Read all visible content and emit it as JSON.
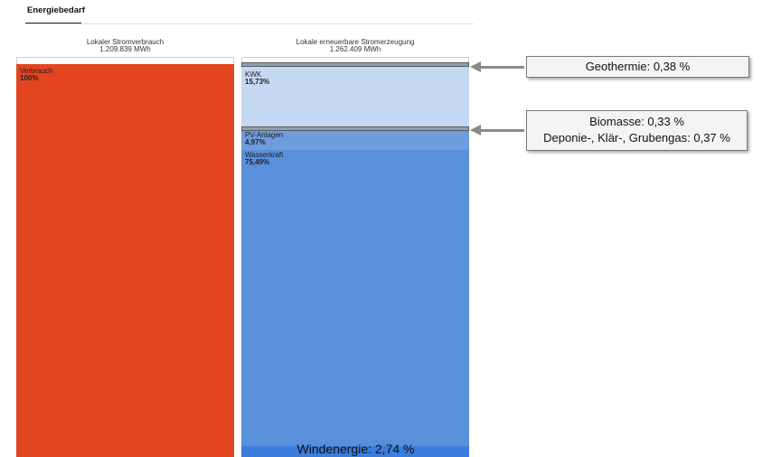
{
  "tab": {
    "title": "Energiebedarf"
  },
  "chart_data": [
    {
      "type": "bar",
      "title": "Lokaler Stromverbrauch",
      "total": "1.209.839 MWh",
      "segments": [
        {
          "name": "Verbrauch",
          "percent_label": "100%",
          "value": 100,
          "color": "#e2451f"
        }
      ]
    },
    {
      "type": "bar",
      "title": "Lokale erneuerbare Stromerzeugung",
      "total": "1.262.409 MWh",
      "segments": [
        {
          "name": "Geothermie",
          "value": 0.38,
          "color": "#8fa0b4"
        },
        {
          "name": "KWK",
          "percent_label": "15,73%",
          "value": 15.73,
          "color": "#c5d8f2"
        },
        {
          "name": "Biomasse / Deponie-, Klär-, Grubengas",
          "value": 0.7,
          "color": "#8fa0b4"
        },
        {
          "name": "PV-Anlagen",
          "percent_label": "4,97%",
          "value": 4.97,
          "color": "#6f9cdc"
        },
        {
          "name": "Wasserkraft",
          "percent_label": "75,49%",
          "value": 75.49,
          "color": "#5990dc"
        },
        {
          "name": "Windenergie",
          "value": 2.74,
          "color": "#3a7ddc"
        }
      ]
    }
  ],
  "annotations": {
    "geothermie": "Geothermie: 0,38 %",
    "biomasse": "Biomasse: 0,33 %",
    "deponie": "Deponie-,  Klär-, Grubengas: 0,37 %",
    "windenergie": "Windenergie: 2,74 %"
  },
  "colors": {
    "verbrauch": "#e2451f",
    "kwk": "#c5d8f2",
    "pv": "#6f9cdc",
    "wasser": "#5990dc",
    "wind": "#3a7ddc",
    "separator": "#8fa0b4"
  }
}
